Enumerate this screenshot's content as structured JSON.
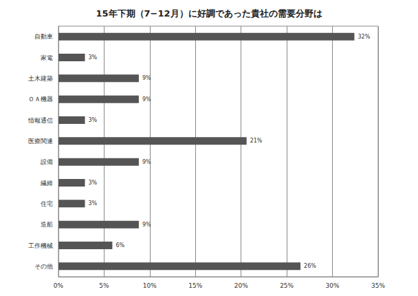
{
  "chart_data": {
    "type": "bar",
    "title": "15年下期（7−12月）に好調であった貴社の需要分野は",
    "orientation": "horizontal",
    "categories": [
      "自動車",
      "家電",
      "土木建築",
      "ＯＡ機器",
      "情報通信",
      "医療関連",
      "設備",
      "繊維",
      "住宅",
      "造船",
      "工作機械",
      "その他"
    ],
    "values": [
      32.4,
      2.9,
      8.8,
      8.8,
      2.9,
      20.6,
      8.8,
      2.9,
      2.9,
      8.8,
      5.9,
      26.5
    ],
    "value_labels": [
      "32%",
      "3%",
      "9%",
      "9%",
      "3%",
      "21%",
      "9%",
      "3%",
      "3%",
      "9%",
      "6%",
      "26%"
    ],
    "color": "#555555",
    "xlim": [
      0,
      35
    ],
    "xticks": [
      {
        "value": 0,
        "label": "0%"
      },
      {
        "value": 5,
        "label": "5%"
      },
      {
        "value": 10,
        "label": "10%"
      },
      {
        "value": 15,
        "label": "15%"
      },
      {
        "value": 20,
        "label": "20%"
      },
      {
        "value": 25,
        "label": "25%"
      },
      {
        "value": 30,
        "label": "30%"
      },
      {
        "value": 35,
        "label": "35%"
      }
    ],
    "grid": true,
    "data_labels": true
  }
}
